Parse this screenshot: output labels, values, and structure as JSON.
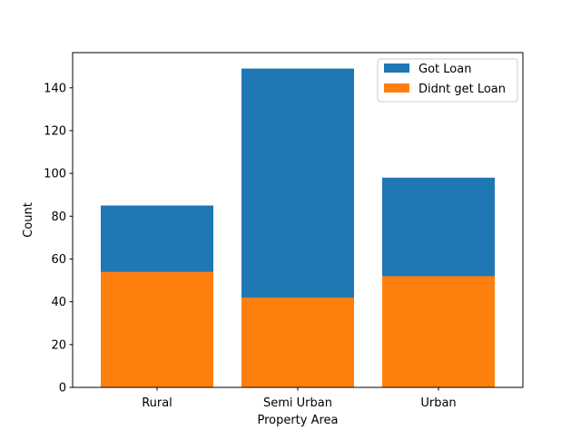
{
  "chart_data": {
    "type": "bar",
    "stacked": false,
    "overlapping_bars": true,
    "categories": [
      "Rural",
      "Semi Urban",
      "Urban"
    ],
    "series": [
      {
        "name": "Got Loan",
        "values": [
          85,
          149,
          98
        ],
        "color": "#1f77b4"
      },
      {
        "name": "Didnt get Loan",
        "values": [
          54,
          42,
          52
        ],
        "color": "#ff7f0e"
      }
    ],
    "xlabel": "Property Area",
    "ylabel": "Count",
    "ylim": [
      0,
      156.45
    ],
    "yticks": [
      0,
      20,
      40,
      60,
      80,
      100,
      120,
      140
    ],
    "grid": false,
    "legend": {
      "position": "top-right"
    }
  }
}
